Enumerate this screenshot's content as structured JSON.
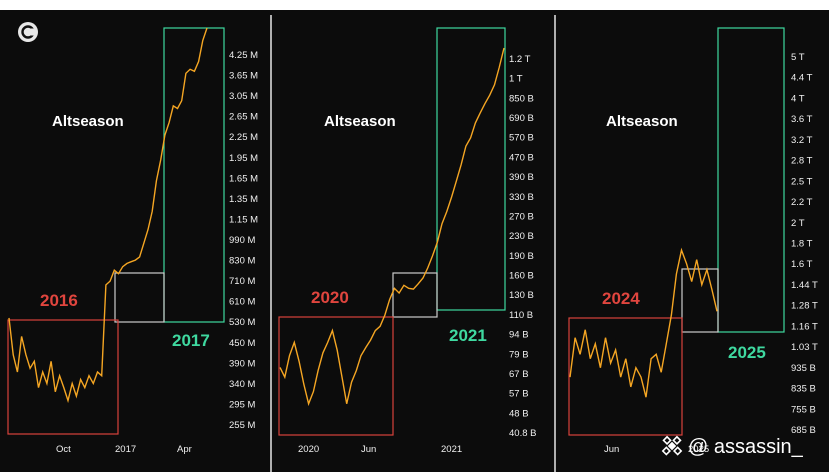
{
  "colors": {
    "line": "#f5a623",
    "red_box": "#d8433c",
    "green_box": "#3fd9a0",
    "white_box": "#cccccc"
  },
  "watermark": {
    "text": "@ assassin_"
  },
  "chart_data": [
    {
      "type": "line",
      "label": "Altseason",
      "years": [
        "2016",
        "2017"
      ],
      "x_ticks": [
        "Oct",
        "2017",
        "Apr"
      ],
      "y_ticks": [
        "4.25 M",
        "3.65 M",
        "3.05 M",
        "2.65 M",
        "2.25 M",
        "1.95 M",
        "1.65 M",
        "1.35 M",
        "1.15 M",
        "990 M",
        "830 M",
        "710 M",
        "610 M",
        "530 M",
        "450 M",
        "390 M",
        "340 M",
        "295 M",
        "255 M"
      ],
      "y_scale": "log",
      "series": [
        {
          "values": [
            0.55,
            0.42,
            0.37,
            0.48,
            0.42,
            0.38,
            0.4,
            0.33,
            0.37,
            0.34,
            0.4,
            0.32,
            0.36,
            0.33,
            0.3,
            0.34,
            0.31,
            0.35,
            0.33,
            0.36,
            0.34,
            0.37,
            0.36,
            0.7,
            0.72,
            0.78,
            0.76,
            0.8,
            0.82,
            0.83,
            0.84,
            0.86,
            0.95,
            1.05,
            1.2,
            1.5,
            1.75,
            2.1,
            2.3,
            2.6,
            2.55,
            2.7,
            3.3,
            3.4,
            3.35,
            3.6,
            4.2,
            4.6
          ]
        }
      ]
    },
    {
      "type": "line",
      "label": "Altseason",
      "years": [
        "2020",
        "2021"
      ],
      "x_ticks": [
        "2020",
        "Jun",
        "2021"
      ],
      "y_ticks": [
        "1.2 T",
        "1 T",
        "850 B",
        "690 B",
        "570 B",
        "470 B",
        "390 B",
        "330 B",
        "270 B",
        "230 B",
        "190 B",
        "160 B",
        "130 B",
        "110 B",
        "94 B",
        "79 B",
        "67 B",
        "57 B",
        "48 B",
        "40.8 B"
      ],
      "y_scale": "log",
      "series": [
        {
          "values": [
            72,
            66,
            80,
            90,
            76,
            62,
            52,
            58,
            70,
            82,
            90,
            100,
            84,
            66,
            52,
            63,
            70,
            80,
            86,
            92,
            100,
            104,
            115,
            132,
            146,
            140,
            150,
            146,
            145,
            152,
            160,
            175,
            195,
            220,
            260,
            290,
            330,
            380,
            440,
            520,
            560,
            640,
            700,
            760,
            820,
            900,
            1050,
            1250
          ]
        }
      ]
    },
    {
      "type": "line",
      "label": "Altseason",
      "years": [
        "2024",
        "2025"
      ],
      "x_ticks": [
        "Jun",
        "2025"
      ],
      "y_ticks": [
        "5 T",
        "4.4 T",
        "4 T",
        "3.6 T",
        "3.2 T",
        "2.8 T",
        "2.5 T",
        "2.2 T",
        "2 T",
        "1.8 T",
        "1.6 T",
        "1.44 T",
        "1.28 T",
        "1.16 T",
        "1.03 T",
        "935 B",
        "835 B",
        "755 B",
        "685 B"
      ],
      "y_scale": "log",
      "series": [
        {
          "values": [
            0.9,
            1.08,
            1.0,
            1.12,
            0.98,
            1.05,
            0.94,
            1.08,
            0.96,
            1.02,
            0.9,
            0.98,
            0.86,
            0.94,
            0.9,
            0.82,
            0.98,
            1.0,
            0.92,
            1.05,
            1.2,
            1.45,
            1.62,
            1.52,
            1.4,
            1.55,
            1.38,
            1.48,
            1.35,
            1.22
          ]
        }
      ]
    }
  ]
}
